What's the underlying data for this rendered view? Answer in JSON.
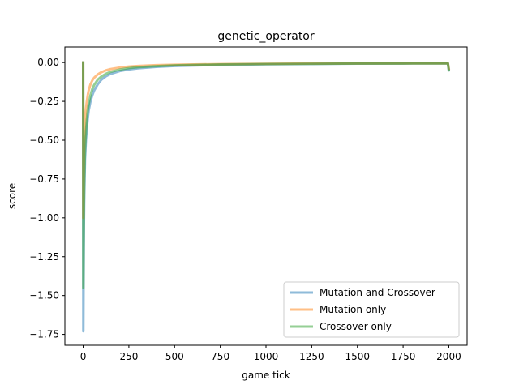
{
  "chart_data": {
    "type": "line",
    "title": "genetic_operator",
    "xlabel": "game tick",
    "ylabel": "score",
    "xlim": [
      -100,
      2100
    ],
    "ylim": [
      -1.82,
      0.1
    ],
    "xticks": [
      0,
      250,
      500,
      750,
      1000,
      1250,
      1500,
      1750,
      2000
    ],
    "xtick_labels": [
      "0",
      "250",
      "500",
      "750",
      "1000",
      "1250",
      "1500",
      "1750",
      "2000"
    ],
    "yticks": [
      0.0,
      -0.25,
      -0.5,
      -0.75,
      -1.0,
      -1.25,
      -1.5,
      -1.75
    ],
    "ytick_labels": [
      "0.00",
      "−0.25",
      "−0.50",
      "−0.75",
      "−1.00",
      "−1.25",
      "−1.50",
      "−1.75"
    ],
    "grid": false,
    "legend_position": "lower-right",
    "series": [
      {
        "name": "Mutation and Crossover",
        "color": "#1f77b4",
        "x": [
          0,
          1,
          2,
          4,
          6,
          10,
          15,
          20,
          25,
          30,
          40,
          50,
          60,
          80,
          100,
          125,
          150,
          200,
          250,
          300,
          400,
          500,
          750,
          1000,
          1250,
          1500,
          1750,
          1995,
          2000
        ],
        "y": [
          0.0,
          -1.73,
          -1.45,
          -1.05,
          -0.85,
          -0.62,
          -0.5,
          -0.42,
          -0.36,
          -0.31,
          -0.25,
          -0.21,
          -0.18,
          -0.14,
          -0.11,
          -0.088,
          -0.073,
          -0.055,
          -0.044,
          -0.037,
          -0.028,
          -0.022,
          -0.015,
          -0.011,
          -0.009,
          -0.007,
          -0.006,
          -0.005,
          -0.05
        ]
      },
      {
        "name": "Mutation only",
        "color": "#ff7f0e",
        "x": [
          0,
          1,
          2,
          4,
          6,
          10,
          15,
          20,
          25,
          30,
          40,
          50,
          60,
          80,
          100,
          125,
          150,
          200,
          250,
          300,
          400,
          500,
          750,
          1000,
          1250,
          1500,
          1750,
          1995,
          2000
        ],
        "y": [
          0.0,
          -1.0,
          -0.8,
          -0.6,
          -0.5,
          -0.38,
          -0.3,
          -0.25,
          -0.21,
          -0.18,
          -0.14,
          -0.115,
          -0.098,
          -0.076,
          -0.062,
          -0.05,
          -0.042,
          -0.032,
          -0.026,
          -0.022,
          -0.017,
          -0.014,
          -0.01,
          -0.008,
          -0.0065,
          -0.0055,
          -0.005,
          -0.0045,
          -0.04
        ]
      },
      {
        "name": "Crossover only",
        "color": "#2ca02c",
        "x": [
          0,
          1,
          2,
          4,
          6,
          10,
          15,
          20,
          25,
          30,
          40,
          50,
          60,
          80,
          100,
          125,
          150,
          200,
          250,
          300,
          400,
          500,
          750,
          1000,
          1250,
          1500,
          1750,
          1995,
          2000
        ],
        "y": [
          0.0,
          -1.45,
          -1.2,
          -0.92,
          -0.75,
          -0.56,
          -0.45,
          -0.37,
          -0.31,
          -0.27,
          -0.21,
          -0.17,
          -0.145,
          -0.11,
          -0.09,
          -0.072,
          -0.06,
          -0.045,
          -0.036,
          -0.03,
          -0.023,
          -0.018,
          -0.012,
          -0.0095,
          -0.008,
          -0.0065,
          -0.006,
          -0.0055,
          -0.05
        ]
      }
    ]
  }
}
